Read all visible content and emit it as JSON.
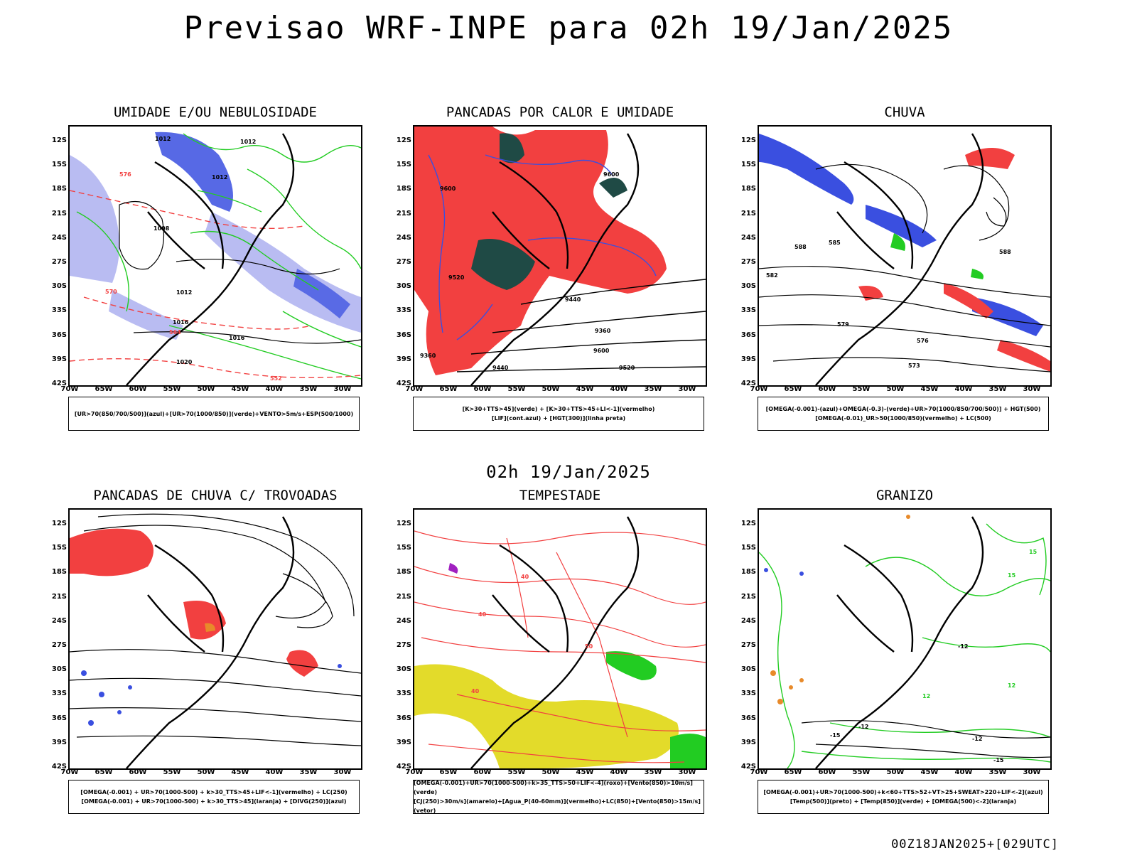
{
  "header": {
    "title": "Previsao WRF-INPE  para 02h 19/Jan/2025",
    "middle_time": "02h 19/Jan/2025",
    "run_stamp": "00Z18JAN2025+[029UTC]"
  },
  "axes": {
    "lat_labels": [
      "12S",
      "15S",
      "18S",
      "21S",
      "24S",
      "27S",
      "30S",
      "33S",
      "36S",
      "39S",
      "42S"
    ],
    "lon_labels": [
      "70W",
      "65W",
      "60W",
      "55W",
      "50W",
      "45W",
      "40W",
      "35W",
      "30W"
    ]
  },
  "colors": {
    "blue": "#3a4fe0",
    "light_blue": "#b9bcf2",
    "green": "#22cc22",
    "red": "#f24040",
    "dark_green": "#1f4a45",
    "yellow": "#e3db2a",
    "orange": "#e88a2a",
    "purple": "#a020c0"
  },
  "panels": [
    {
      "id": "umidade",
      "title": "UMIDADE E/OU NEBULOSIDADE",
      "legend": [
        "[UR>70(850/700/500)](azul)+[UR>70(1000/850)](verde)+VENTO>5m/s+ESP(500/1000)"
      ],
      "contour_labels": [
        "1012",
        "1012",
        "1012",
        "1008",
        "1012",
        "1016",
        "1016",
        "1020",
        "552",
        "564",
        "570",
        "576"
      ]
    },
    {
      "id": "pancadas-calor",
      "title": "PANCADAS POR CALOR E UMIDADE",
      "legend": [
        "[K>30+TTS>45](verde) + [K>30+TTS>45+LI<-1](vermelho)",
        "[LIF](cont.azul) + [HGT(300)](linha preta)"
      ],
      "contour_labels": [
        "9600",
        "9600",
        "9520",
        "9440",
        "9360",
        "9600",
        "9520",
        "9440",
        "9360"
      ]
    },
    {
      "id": "chuva",
      "title": "CHUVA",
      "legend": [
        "[OMEGA(-0.001)-(azul)+OMEGA(-0.3)-(verde)+UR>70(1000/850/700/500)] + HGT(500)",
        "[OMEGA(-0.01)_UR>50(1000/850)(vermelho) + LC(500)"
      ],
      "contour_labels": [
        "588",
        "585",
        "582",
        "579",
        "576",
        "573",
        "588"
      ]
    },
    {
      "id": "pancadas-trovoadas",
      "title": "PANCADAS DE CHUVA C/ TROVOADAS",
      "legend": [
        "[OMEGA(-0.001) + UR>70(1000-500) + k>30_TTS>45+LIF<-1](vermelho) + LC(250)",
        "[OMEGA(-0.001) + UR>70(1000-500) + k>30_TTS>45](laranja) + [DIVG(250)](azul)"
      ],
      "contour_labels": []
    },
    {
      "id": "tempestade",
      "title": "TEMPESTADE",
      "legend": [
        "[OMEGA(-0.001)+UR>70(1000-500)+k>35_TTS>50+LIF<-4](roxo)+[Vento(850)>10m/s](verde)",
        "[CJ(250)>30m/s](amarelo)+[Agua_P(40-60mm)](vermelho)+LC(850)+[Vento(850)>15m/s](vetor)"
      ],
      "contour_labels": [
        "40",
        "40",
        "50",
        "40"
      ]
    },
    {
      "id": "granizo",
      "title": "GRANIZO",
      "legend": [
        "[OMEGA(-0.001)+UR>70(1000-500)+k<60+TTS>52+VT>25+SWEAT>220+LIF<-2](azul)",
        "[Temp(500)](preto) + [Temp(850)](verde) + [OMEGA(500)<-2](laranja)"
      ],
      "contour_labels": [
        "-12",
        "-12",
        "-15",
        "-15",
        "-12",
        "12",
        "15",
        "12",
        "15"
      ]
    }
  ]
}
